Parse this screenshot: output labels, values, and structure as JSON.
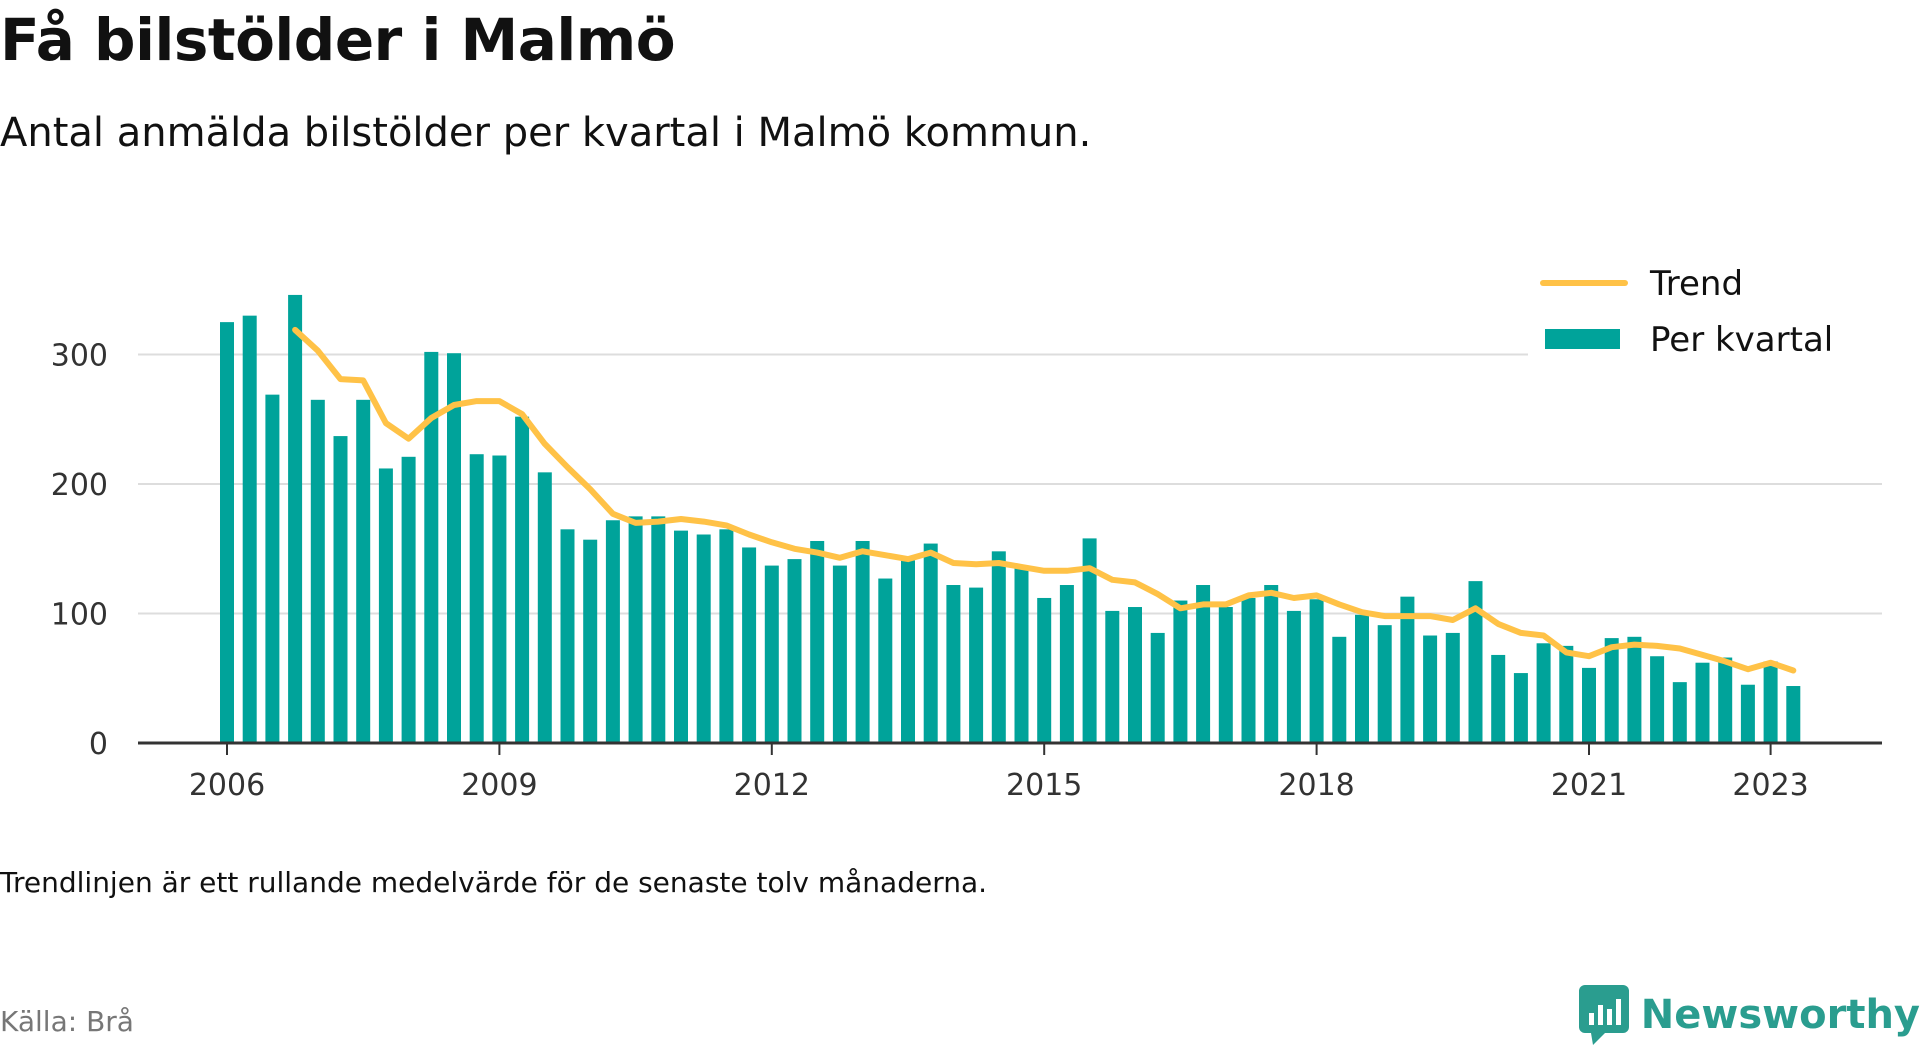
{
  "title": "Få bilstölder i Malmö",
  "subtitle": "Antal anmälda bilstölder per kvartal i Malmö kommun.",
  "note": "Trendlinjen är ett rullande medelvärde för de senaste tolv månaderna.",
  "source": "Källa: Brå",
  "logo": {
    "text": "Newsworthy",
    "icon": "newsworthy-chart-bubble-icon"
  },
  "colors": {
    "bars": "#00a39a",
    "trend": "#ffc247",
    "grid": "#dddddd",
    "axis": "#333333"
  },
  "chart_data": {
    "type": "bar",
    "x_start": "2006 Q1",
    "yticks": [
      0,
      100,
      200,
      300
    ],
    "ylim": [
      0,
      345
    ],
    "xtick_labels": [
      "2006",
      "2009",
      "2012",
      "2015",
      "2018",
      "2021",
      "2023"
    ],
    "xtick_index": [
      0,
      12,
      24,
      36,
      48,
      60,
      68
    ],
    "grid": "horizontal",
    "legend_position": "top-right",
    "series": [
      {
        "name": "Per kvartal",
        "kind": "bar",
        "values": [
          325,
          330,
          269,
          346,
          265,
          237,
          265,
          212,
          221,
          302,
          301,
          223,
          222,
          252,
          209,
          165,
          157,
          172,
          175,
          175,
          164,
          161,
          165,
          151,
          137,
          142,
          156,
          137,
          156,
          127,
          141,
          154,
          122,
          120,
          148,
          137,
          112,
          122,
          158,
          102,
          105,
          85,
          110,
          122,
          105,
          112,
          122,
          102,
          111,
          82,
          99,
          91,
          113,
          83,
          85,
          125,
          68,
          54,
          77,
          75,
          58,
          81,
          82,
          67,
          47,
          62,
          66,
          45,
          63,
          44
        ]
      },
      {
        "name": "Trend",
        "kind": "line",
        "start_index": 3,
        "values": [
          319,
          303,
          281,
          280,
          247,
          235,
          251,
          261,
          264,
          264,
          254,
          231,
          213,
          196,
          177,
          170,
          171,
          173,
          171,
          168,
          161,
          155,
          150,
          147,
          143,
          148,
          145,
          142,
          147,
          139,
          138,
          139,
          136,
          133,
          133,
          135,
          126,
          124,
          115,
          104,
          107,
          107,
          114,
          116,
          112,
          114,
          107,
          101,
          98,
          98,
          98,
          95,
          104,
          92,
          85,
          83,
          70,
          67,
          74,
          76,
          75,
          73,
          68,
          63,
          57,
          62,
          56
        ]
      }
    ]
  }
}
